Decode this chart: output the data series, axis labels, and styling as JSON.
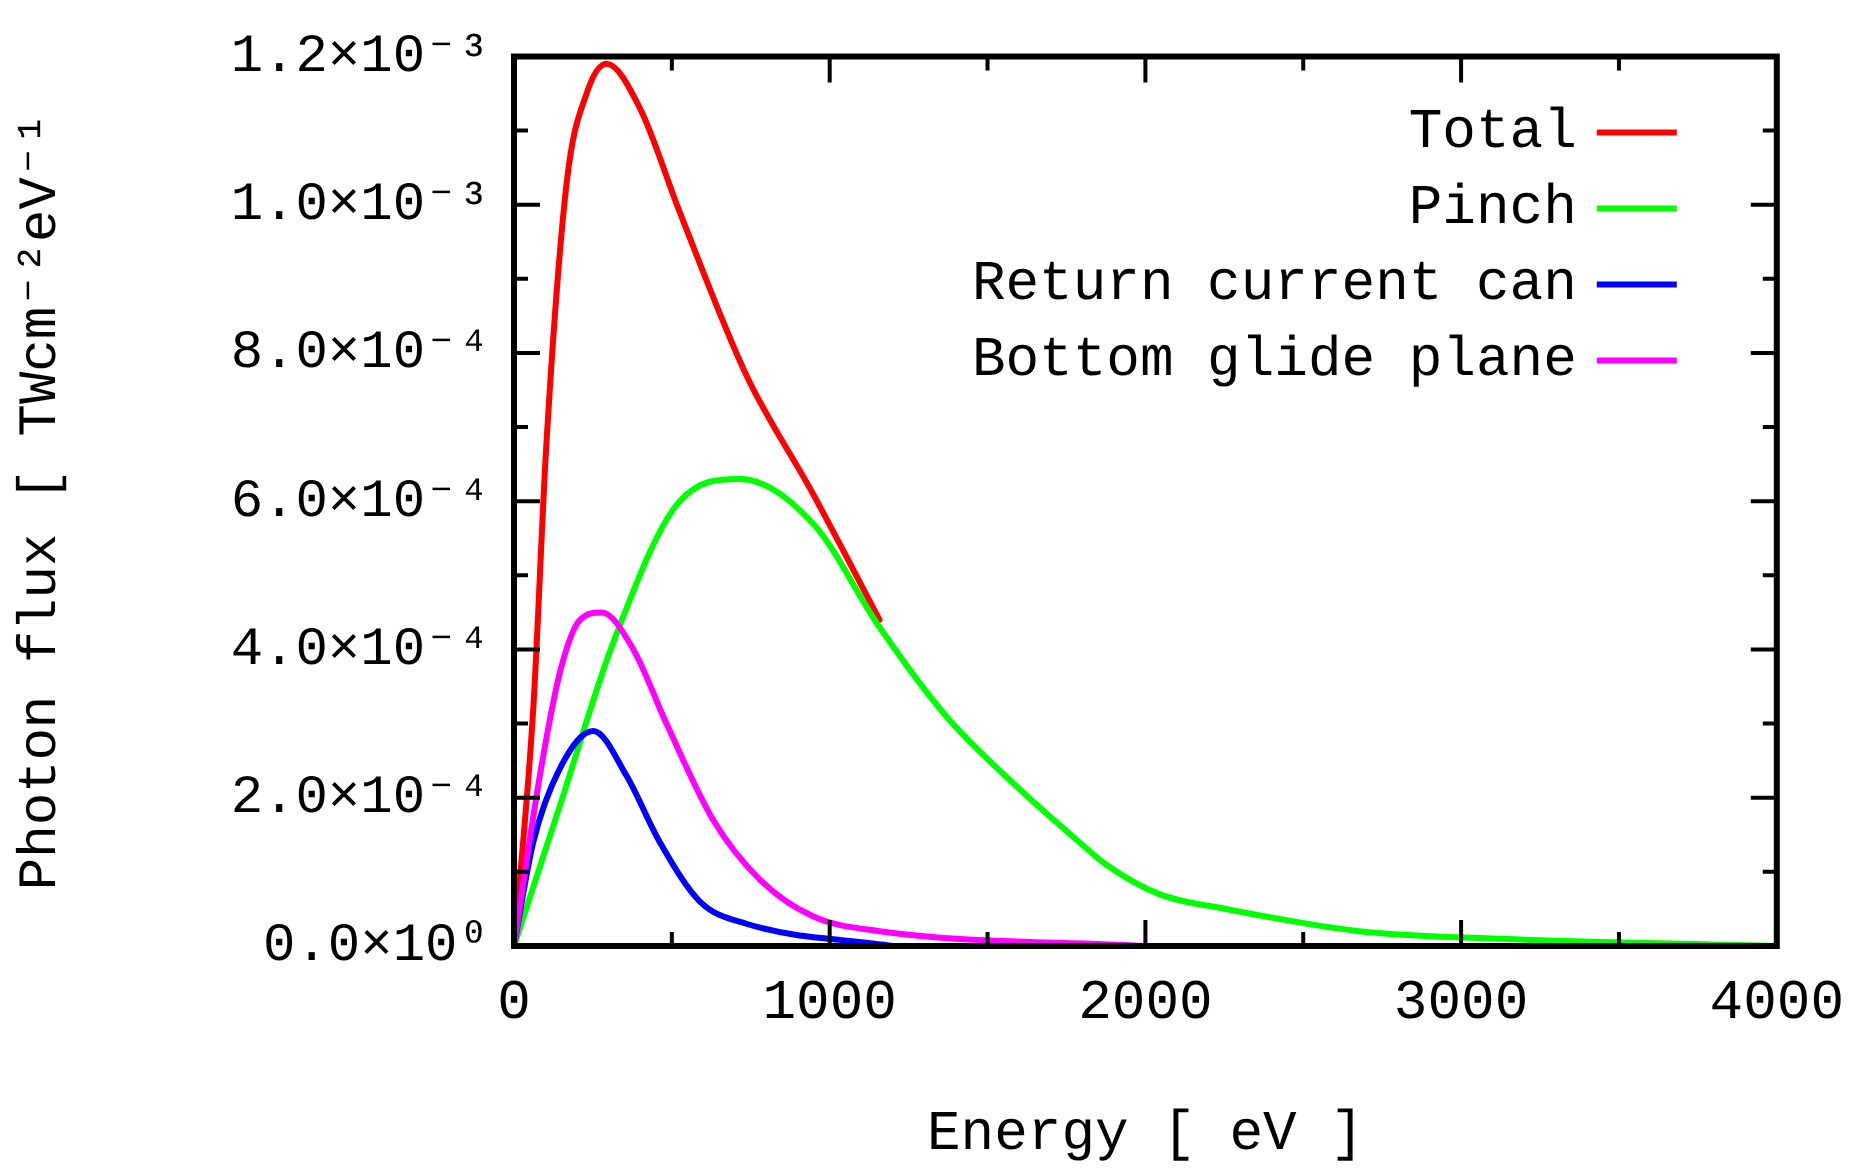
{
  "chart_data": {
    "type": "line",
    "xlabel": "Energy [ eV ]",
    "ylabel": "Photon flux [ TWcm⁻²eV⁻¹",
    "legend": "top right",
    "grid": false,
    "marker": "none",
    "line_style": "solid",
    "xlim": [
      0,
      4000
    ],
    "ylim": [
      0,
      0.0012
    ],
    "xticks": [
      0,
      {
        "value": 500,
        "label": null
      },
      1000,
      {
        "value": 1500,
        "label": null
      },
      2000,
      {
        "value": 2500,
        "label": null
      },
      3000,
      {
        "value": 3500,
        "label": null
      },
      4000
    ],
    "yticks": [
      {
        "value": 0,
        "label": "0.0×10⁰"
      },
      {
        "value": 0.0001,
        "label": null
      },
      {
        "value": 0.0002,
        "label": "2.0×10⁻⁴"
      },
      {
        "value": 0.0003,
        "label": null
      },
      {
        "value": 0.0004,
        "label": "4.0×10⁻⁴"
      },
      {
        "value": 0.0005,
        "label": null
      },
      {
        "value": 0.0006,
        "label": "6.0×10⁻⁴"
      },
      {
        "value": 0.0007,
        "label": null
      },
      {
        "value": 0.0008,
        "label": "8.0×10⁻⁴"
      },
      {
        "value": 0.0009,
        "label": null
      },
      {
        "value": 0.001,
        "label": "1.0×10⁻³"
      },
      {
        "value": 0.0011,
        "label": null
      },
      {
        "value": 0.0012,
        "label": "1.2×10⁻³"
      }
    ],
    "series": [
      {
        "name": "Total",
        "color": "#ff0000",
        "x": [
          0,
          61,
          103,
          167,
          230,
          293,
          399,
          525,
          736,
          947,
          1158
        ],
        "values": [
          0,
          0.00032,
          0.00068,
          0.00103,
          0.00115,
          0.00119,
          0.00113,
          0.00099,
          0.00077,
          0.00061,
          0.00044
        ]
      },
      {
        "name": "Pinch",
        "color": "#00ff00",
        "x": [
          0,
          146,
          315,
          525,
          715,
          947,
          1158,
          1369,
          1580,
          1791,
          1875,
          2044,
          2255,
          2677,
          3099,
          4000
        ],
        "values": [
          0,
          0.00019,
          0.00041,
          0.0006,
          0.00063,
          0.00057,
          0.00043,
          0.00031,
          0.00022,
          0.00014,
          0.00011,
          7e-05,
          5e-05,
          2e-05,
          1e-05,
          0
        ]
      },
      {
        "name": "Return current can",
        "color": "#0000ff",
        "x": [
          0,
          61,
          146,
          251,
          356,
          462,
          589,
          736,
          1200
        ],
        "values": [
          0,
          0.00014,
          0.00024,
          0.00029,
          0.00023,
          0.00014,
          6e-05,
          3e-05,
          0
        ]
      },
      {
        "name": "Bottom glide plane",
        "color": "#ff00ff",
        "x": [
          0,
          82,
          146,
          209,
          278,
          378,
          483,
          631,
          778,
          947,
          1158,
          2000
        ],
        "values": [
          0,
          0.00023,
          0.00037,
          0.00044,
          0.00045,
          0.0004,
          0.0003,
          0.00017,
          9e-05,
          4e-05,
          2e-05,
          0
        ]
      }
    ]
  }
}
